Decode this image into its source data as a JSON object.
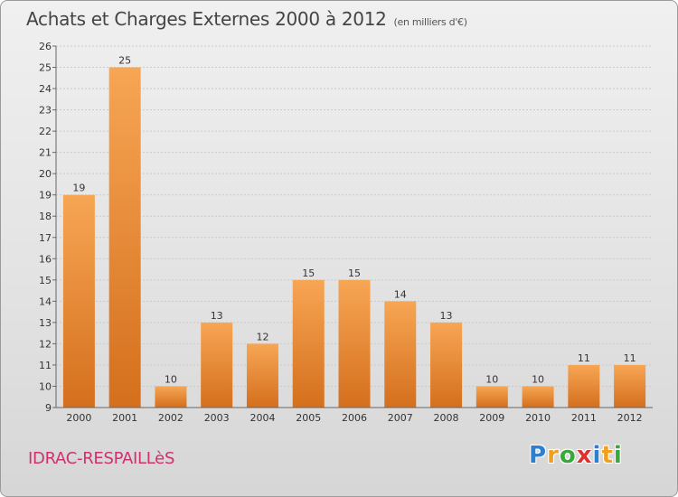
{
  "header": {
    "title": "Achats et Charges Externes 2000 à 2012",
    "subtitle": "(en milliers d'€)"
  },
  "footer": {
    "commune": "IDRAC-RESPAILLèS",
    "logo_letters": [
      {
        "ch": "P",
        "color": "#2e7fd0"
      },
      {
        "ch": "r",
        "color": "#f0a020"
      },
      {
        "ch": "o",
        "color": "#3aa83a"
      },
      {
        "ch": "x",
        "color": "#e03030"
      },
      {
        "ch": "i",
        "color": "#2e7fd0"
      },
      {
        "ch": "t",
        "color": "#f0a020"
      },
      {
        "ch": "i",
        "color": "#3aa83a"
      }
    ]
  },
  "chart_data": {
    "type": "bar",
    "title": "Achats et Charges Externes 2000 à 2012",
    "subtitle": "(en milliers d'€)",
    "categories": [
      "2000",
      "2001",
      "2002",
      "2003",
      "2004",
      "2005",
      "2006",
      "2007",
      "2008",
      "2009",
      "2010",
      "2011",
      "2012"
    ],
    "values": [
      19,
      25,
      10,
      13,
      12,
      15,
      15,
      14,
      13,
      10,
      10,
      11,
      11
    ],
    "ylim": [
      9,
      26
    ],
    "yticks": [
      9,
      10,
      11,
      12,
      13,
      14,
      15,
      16,
      17,
      18,
      19,
      20,
      21,
      22,
      23,
      24,
      25,
      26
    ],
    "grid": true,
    "bar_color_top": "#f7a654",
    "bar_color_bottom": "#d46f1d"
  }
}
